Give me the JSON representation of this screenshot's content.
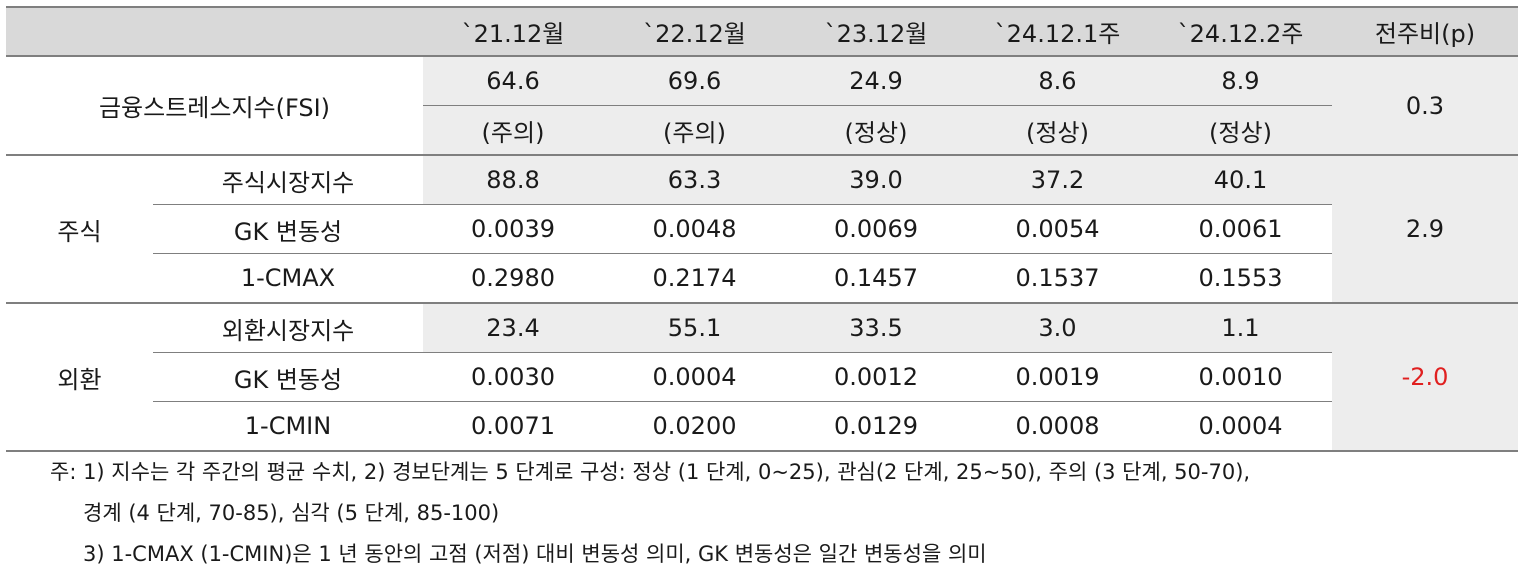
{
  "header": [
    "",
    "`21.12월",
    "`22.12월",
    "`23.12월",
    "`24.12.1주",
    "`24.12.2주",
    "전주비(p)"
  ],
  "fsi": {
    "label": "금융스트레스지수(FSI)",
    "values": [
      "64.6",
      "69.6",
      "24.9",
      "8.6",
      "8.9"
    ],
    "levels": [
      "(주의)",
      "(주의)",
      "(정상)",
      "(정상)",
      "(정상)"
    ],
    "change": "0.3"
  },
  "stock": {
    "label": "주식",
    "change": "2.9",
    "rows": [
      {
        "name": "주식시장지수",
        "values": [
          "88.8",
          "63.3",
          "39.0",
          "37.2",
          "40.1"
        ]
      },
      {
        "name": "GK 변동성",
        "values": [
          "0.0039",
          "0.0048",
          "0.0069",
          "0.0054",
          "0.0061"
        ]
      },
      {
        "name": "1-CMAX",
        "values": [
          "0.2980",
          "0.2174",
          "0.1457",
          "0.1537",
          "0.1553"
        ]
      }
    ]
  },
  "fx": {
    "label": "외환",
    "change": "-2.0",
    "change_color": "#e02020",
    "rows": [
      {
        "name": "외환시장지수",
        "values": [
          "23.4",
          "55.1",
          "33.5",
          "3.0",
          "1.1"
        ]
      },
      {
        "name": "GK 변동성",
        "values": [
          "0.0030",
          "0.0004",
          "0.0012",
          "0.0019",
          "0.0010"
        ]
      },
      {
        "name": "1-CMIN",
        "values": [
          "0.0071",
          "0.0200",
          "0.0129",
          "0.0008",
          "0.0004"
        ]
      }
    ]
  },
  "notes": [
    "주: 1) 지수는 각 주간의 평균 수치, 2) 경보단계는 5 단계로 구성: 정상 (1 단계, 0~25), 관심(2 단계, 25~50), 주의 (3 단계, 50-70),",
    "경계 (4 단계, 70-85), 심각 (5 단계, 85-100)",
    "3) 1-CMAX (1-CMIN)은 1 년 동안의 고점 (저점) 대비 변동성 의미, GK 변동성은 일간 변동성을 의미"
  ]
}
